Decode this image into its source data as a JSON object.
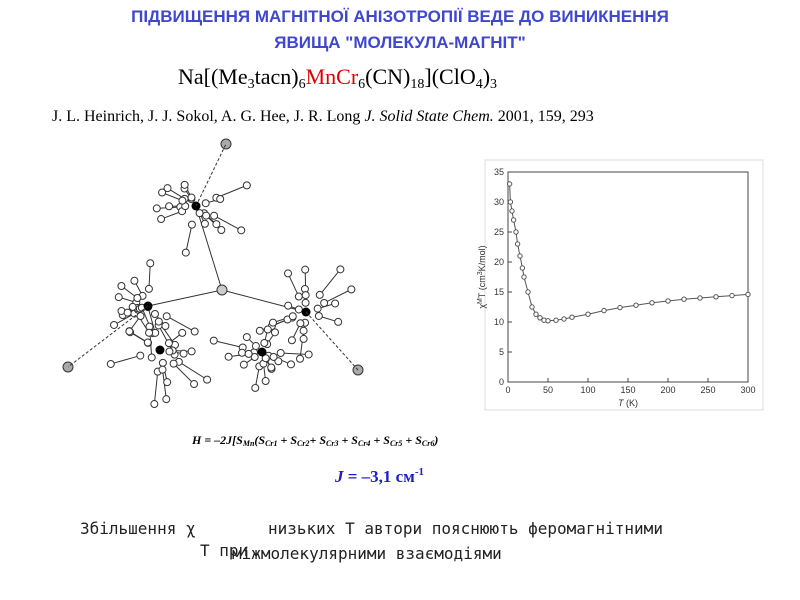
{
  "title": [
    "ПІДВИЩЕННЯ МАГНІТНОЇ АНІЗОТРОПІЇ ВЕДЕ ДО ВИНИКНЕННЯ",
    "ЯВИЩА \"МОЛЕКУЛА-МАГНІТ\""
  ],
  "formula": [
    "Na[(Me",
    "3",
    "tacn)",
    "6",
    "MnCr",
    "6",
    "(CN)",
    "18",
    "](ClO",
    "4",
    ")",
    "3"
  ],
  "reference": [
    "J. L. Heinrich, J. J. Sokol, A. G. Hee, J. R. Long ",
    "J. Solid State Chem.",
    " 2001, 159, 293"
  ],
  "hamiltonian": [
    "H = –2J[S",
    "Mn",
    "(S",
    "Cr1",
    " + S",
    "Cr2",
    "+ S",
    "Cr3",
    " + S",
    "Cr4",
    " + S",
    "Cr5",
    " + S",
    "Cr6",
    ")"
  ],
  "j_value": [
    "J",
    " = –3,1 см",
    "-1"
  ],
  "caption": [
    "Збільшення χ",
    "низьких T автори пояснюють феромагнітними",
    "T при",
    "міжмолекулярними взаємодіями"
  ],
  "chart_data": {
    "type": "scatter",
    "x": [
      2,
      3,
      5,
      7,
      10,
      12,
      15,
      18,
      20,
      25,
      30,
      35,
      40,
      45,
      50,
      60,
      70,
      80,
      100,
      120,
      140,
      160,
      180,
      200,
      220,
      240,
      260,
      280,
      300
    ],
    "values": [
      33,
      30,
      28.5,
      27,
      25,
      23,
      21,
      19,
      17.5,
      15,
      12.5,
      11.3,
      10.7,
      10.3,
      10.2,
      10.3,
      10.5,
      10.8,
      11.3,
      11.9,
      12.4,
      12.8,
      13.2,
      13.5,
      13.8,
      14,
      14.2,
      14.4,
      14.6
    ],
    "color": "#555555",
    "xlabel": [
      "T",
      " (K)"
    ],
    "ylabel": [
      "χ",
      "M",
      "T (cm",
      "3",
      "K/mol)"
    ],
    "xlim": [
      0,
      300
    ],
    "xticks": [
      0,
      50,
      100,
      150,
      200,
      250,
      300
    ],
    "ylim": [
      0,
      35
    ],
    "yticks": [
      0,
      5,
      10,
      15,
      20,
      25,
      30,
      35
    ]
  }
}
